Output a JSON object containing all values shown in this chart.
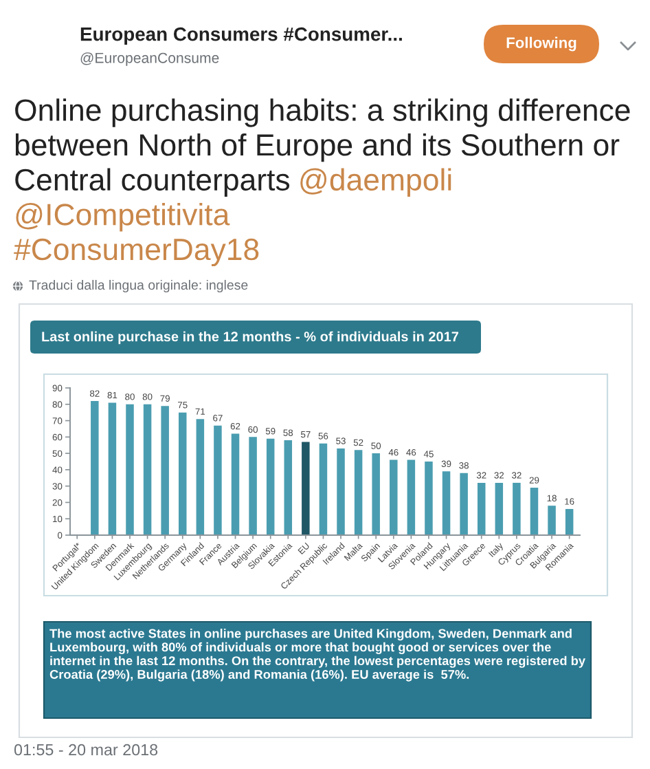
{
  "chart_data": {
    "type": "bar",
    "title": "Last online purchase in the 12 months - % of individuals in 2017",
    "categories": [
      "Portugal*",
      "United Kingdom",
      "Sweden",
      "Denmark",
      "Luxembourg",
      "Netherlands",
      "Germany",
      "Finland",
      "France",
      "Austria",
      "Belgium",
      "Slovakia",
      "Estonia",
      "EU",
      "Czech Republic",
      "Ireland",
      "Malta",
      "Spain",
      "Latvia",
      "Slovenia",
      "Poland",
      "Hungary",
      "Lithuania",
      "Greece",
      "Italy",
      "Cyprus",
      "Croatia",
      "Bulgaria",
      "Romania"
    ],
    "values": [
      null,
      82,
      81,
      80,
      80,
      79,
      75,
      71,
      67,
      62,
      60,
      59,
      58,
      57,
      56,
      53,
      52,
      50,
      46,
      46,
      45,
      39,
      38,
      32,
      32,
      32,
      29,
      18,
      16
    ],
    "colors": [
      "#4a9db0",
      "#4a9db0",
      "#4a9db0",
      "#4a9db0",
      "#4a9db0",
      "#4a9db0",
      "#4a9db0",
      "#4a9db0",
      "#4a9db0",
      "#4a9db0",
      "#4a9db0",
      "#4a9db0",
      "#4a9db0",
      "#1f5766",
      "#4a9db0",
      "#4a9db0",
      "#4a9db0",
      "#4a9db0",
      "#4a9db0",
      "#4a9db0",
      "#4a9db0",
      "#4a9db0",
      "#4a9db0",
      "#4a9db0",
      "#4a9db0",
      "#4a9db0",
      "#4a9db0",
      "#4a9db0",
      "#4a9db0"
    ],
    "ylim": [
      0,
      90
    ],
    "yticks": [
      0,
      10,
      20,
      30,
      40,
      50,
      60,
      70,
      80,
      90
    ],
    "data_labels": true,
    "annotations": [
      "European Consumers #Consumer...",
      "@EuropeanConsume",
      "Following",
      "Online purchasing habits: a striking difference",
      "between North of Europe and its Southern or",
      "Central counterparts",
      "@daempoli",
      "@ICompetitivita",
      "#ConsumerDay18",
      "Traduci dalla lingua originale: inglese",
      "The most active States in online purchases are United Kingdom, Sweden, Denmark and\nLuxembourg, with 80% of individuals or more that bought good or services over the\ninternet in the last 12 months. On the contrary, the lowest percentages were registered by\nCroatia (29%), Bulgaria (18%) and Romania (16%). EU average is  57%.",
      "01:55 - 20 mar 2018"
    ]
  }
}
